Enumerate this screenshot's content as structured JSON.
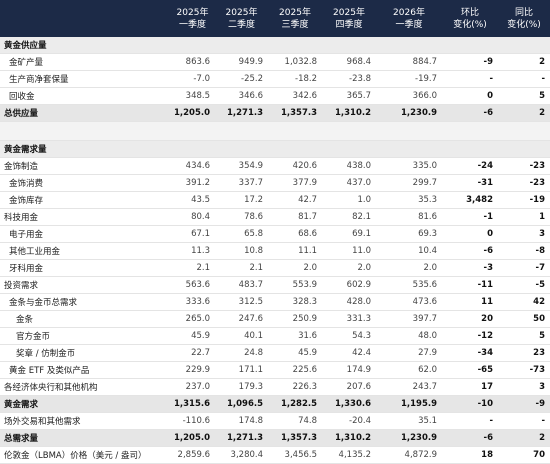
{
  "table": {
    "header": [
      "2025年\n一季度",
      "2025年\n二季度",
      "2025年\n三季度",
      "2025年\n四季度",
      "2026年\n一季度",
      "环比\n变化(%)",
      "同比\n变化(%)"
    ],
    "rows": [
      {
        "label": "黄金供应量"
      },
      {
        "label": "金矿产量",
        "cells": [
          "863.6",
          "949.9",
          "1,032.8",
          "968.4",
          "884.7",
          "-9",
          "2"
        ]
      },
      {
        "label": "生产商净套保量",
        "cells": [
          "-7.0",
          "-25.2",
          "-18.2",
          "-23.8",
          "-19.7",
          "-",
          "-"
        ]
      },
      {
        "label": "回收金",
        "cells": [
          "348.5",
          "346.6",
          "342.6",
          "365.7",
          "366.0",
          "0",
          "5"
        ]
      },
      {
        "label": "总供应量",
        "cells": [
          "1,205.0",
          "1,271.3",
          "1,357.3",
          "1,310.2",
          "1,230.9",
          "-6",
          "2"
        ]
      },
      {
        "label": "黄金需求量"
      },
      {
        "label": "金饰制造",
        "cells": [
          "434.6",
          "354.9",
          "420.6",
          "438.0",
          "335.0",
          "-24",
          "-23"
        ]
      },
      {
        "label": "金饰消费",
        "cells": [
          "391.2",
          "337.7",
          "377.9",
          "437.0",
          "299.7",
          "-31",
          "-23"
        ]
      },
      {
        "label": "金饰库存",
        "cells": [
          "43.5",
          "17.2",
          "42.7",
          "1.0",
          "35.3",
          "3,482",
          "-19"
        ]
      },
      {
        "label": "科技用金",
        "cells": [
          "80.4",
          "78.6",
          "81.7",
          "82.1",
          "81.6",
          "-1",
          "1"
        ]
      },
      {
        "label": "电子用金",
        "cells": [
          "67.1",
          "65.8",
          "68.6",
          "69.1",
          "69.3",
          "0",
          "3"
        ]
      },
      {
        "label": "其他工业用金",
        "cells": [
          "11.3",
          "10.8",
          "11.1",
          "11.0",
          "10.4",
          "-6",
          "-8"
        ]
      },
      {
        "label": "牙科用金",
        "cells": [
          "2.1",
          "2.1",
          "2.0",
          "2.0",
          "2.0",
          "-3",
          "-7"
        ]
      },
      {
        "label": "投资需求",
        "cells": [
          "563.6",
          "483.7",
          "553.9",
          "602.9",
          "535.6",
          "-11",
          "-5"
        ]
      },
      {
        "label": "金条与金币总需求",
        "cells": [
          "333.6",
          "312.5",
          "328.3",
          "428.0",
          "473.6",
          "11",
          "42"
        ]
      },
      {
        "label": "金条",
        "cells": [
          "265.0",
          "247.6",
          "250.9",
          "331.3",
          "397.7",
          "20",
          "50"
        ]
      },
      {
        "label": "官方金币",
        "cells": [
          "45.9",
          "40.1",
          "31.6",
          "54.3",
          "48.0",
          "-12",
          "5"
        ]
      },
      {
        "label": "奖章 / 仿制金币",
        "cells": [
          "22.7",
          "24.8",
          "45.9",
          "42.4",
          "27.9",
          "-34",
          "23"
        ]
      },
      {
        "label": "黄金 ETF 及类似产品",
        "cells": [
          "229.9",
          "171.1",
          "225.6",
          "174.9",
          "62.0",
          "-65",
          "-73"
        ]
      },
      {
        "label": "各经济体央行和其他机构",
        "cells": [
          "237.0",
          "179.3",
          "226.3",
          "207.6",
          "243.7",
          "17",
          "3"
        ]
      },
      {
        "label": "黄金需求",
        "cells": [
          "1,315.6",
          "1,096.5",
          "1,282.5",
          "1,330.6",
          "1,195.9",
          "-10",
          "-9"
        ]
      },
      {
        "label": "场外交易和其他需求",
        "cells": [
          "-110.6",
          "174.8",
          "74.8",
          "-20.4",
          "35.1",
          "-",
          "-"
        ]
      },
      {
        "label": "总需求量",
        "cells": [
          "1,205.0",
          "1,271.3",
          "1,357.3",
          "1,310.2",
          "1,230.9",
          "-6",
          "2"
        ]
      },
      {
        "label": "伦敦金（LBMA）价格（美元 / 盎司）",
        "cells": [
          "2,859.6",
          "3,280.4",
          "3,456.5",
          "4,135.2",
          "4,872.9",
          "18",
          "70"
        ]
      }
    ]
  }
}
